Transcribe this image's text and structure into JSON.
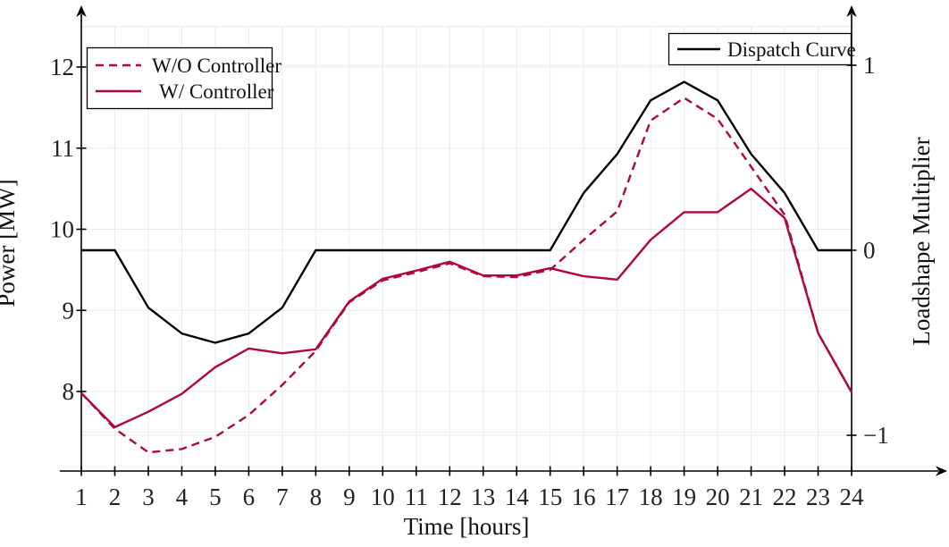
{
  "figure": {
    "background": "#ffffff",
    "colors": {
      "controller": "#B1063C",
      "dispatch": "#000000",
      "grid": "#ebebeb",
      "axis": "#000000",
      "text": "#222222"
    }
  },
  "legends": {
    "controllers": {
      "items": [
        {
          "label": "W/O Controller",
          "style": "dashed"
        },
        {
          "label": "W/ Controller",
          "style": "solid"
        }
      ]
    },
    "dispatch": {
      "items": [
        {
          "label": "Dispatch Curve",
          "style": "solid"
        }
      ]
    }
  },
  "chart_data": {
    "type": "line",
    "title": "",
    "xlabel": "Time [hours]",
    "x": [
      1,
      2,
      3,
      4,
      5,
      6,
      7,
      8,
      9,
      10,
      11,
      12,
      13,
      14,
      15,
      16,
      17,
      18,
      19,
      20,
      21,
      22,
      23,
      24
    ],
    "x_ticks": [
      1,
      2,
      3,
      4,
      5,
      6,
      7,
      8,
      9,
      10,
      11,
      12,
      13,
      14,
      15,
      16,
      17,
      18,
      19,
      20,
      21,
      22,
      23,
      24
    ],
    "axes": {
      "left": {
        "label": "Power [MW]",
        "ticks": [
          8,
          9,
          10,
          11,
          12
        ],
        "minor_gridlines": [
          7.5,
          12.5
        ],
        "range": [
          7.0,
          12.7
        ]
      },
      "right": {
        "label": "Loadshape Multiplier",
        "ticks": [
          -1,
          0,
          1
        ],
        "range": [
          -1.19,
          1.31
        ]
      }
    },
    "grid": true,
    "legend_positions": [
      "top-left",
      "top-right"
    ],
    "series": [
      {
        "name": "W/O Controller",
        "axis": "left",
        "style": "dashed",
        "color": "#B1063C",
        "values": [
          7.98,
          7.54,
          7.25,
          7.29,
          7.44,
          7.71,
          8.08,
          8.5,
          9.1,
          9.37,
          9.47,
          9.58,
          9.42,
          9.41,
          9.5,
          9.87,
          10.22,
          11.34,
          11.62,
          11.36,
          10.77,
          10.18,
          8.72,
          7.99
        ]
      },
      {
        "name": "W/ Controller",
        "axis": "left",
        "style": "solid",
        "color": "#B1063C",
        "values": [
          7.98,
          7.56,
          7.75,
          7.97,
          8.3,
          8.53,
          8.47,
          8.52,
          9.11,
          9.39,
          9.49,
          9.6,
          9.43,
          9.43,
          9.52,
          9.42,
          9.38,
          9.87,
          10.21,
          10.21,
          10.5,
          10.14,
          8.72,
          7.99
        ]
      },
      {
        "name": "Dispatch Curve",
        "axis": "right",
        "style": "solid",
        "color": "#000000",
        "values": [
          0,
          0,
          -0.31,
          -0.45,
          -0.5,
          -0.45,
          -0.31,
          0,
          0,
          0,
          0,
          0,
          0,
          0,
          0,
          0.31,
          0.52,
          0.81,
          0.91,
          0.81,
          0.52,
          0.31,
          0,
          0
        ]
      }
    ]
  }
}
